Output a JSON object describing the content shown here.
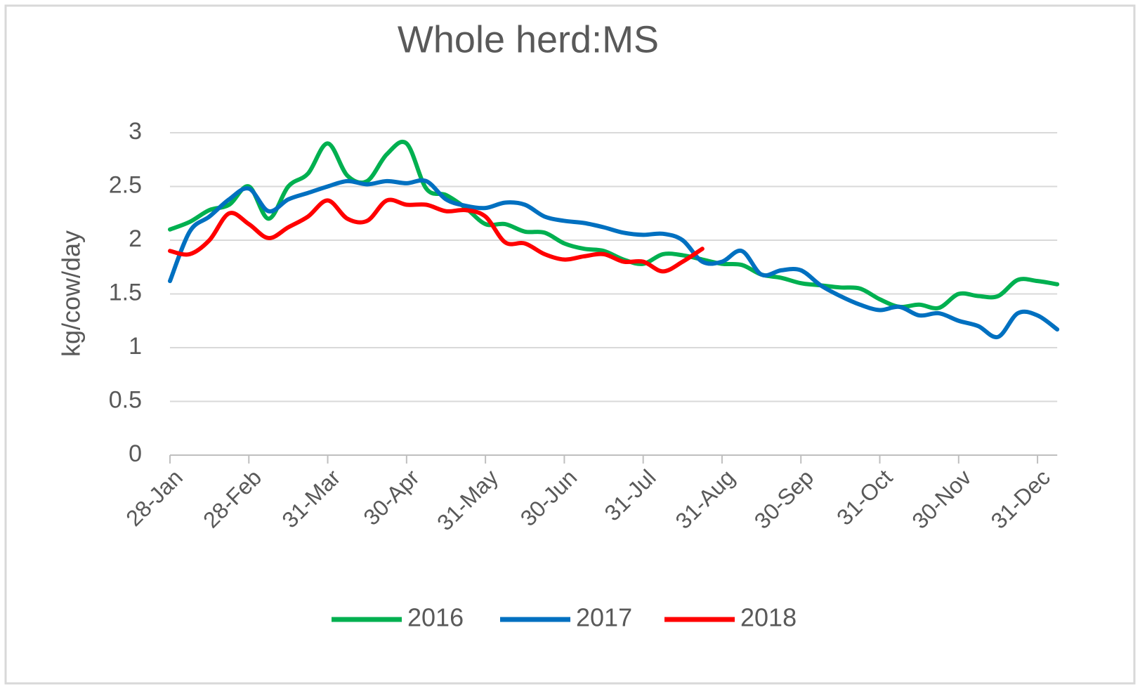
{
  "chart_data": {
    "type": "line",
    "title": "Whole herd:MS",
    "y_label": "kg/cow/day",
    "categories": [
      "28-Jan",
      null,
      null,
      null,
      "28-Feb",
      null,
      null,
      null,
      "31-Mar",
      null,
      null,
      null,
      "30-Apr",
      null,
      null,
      null,
      "31-May",
      null,
      null,
      null,
      "30-Jun",
      null,
      null,
      null,
      "31-Jul",
      null,
      null,
      null,
      "31-Aug",
      null,
      null,
      null,
      "30-Sep",
      null,
      null,
      null,
      "31-Oct",
      null,
      null,
      null,
      "30-Nov",
      null,
      null,
      null,
      "31-Dec",
      null
    ],
    "series": [
      {
        "name": "2016",
        "color": "#00b050",
        "values": [
          2.1,
          2.17,
          2.28,
          2.33,
          2.5,
          2.2,
          2.5,
          2.62,
          2.9,
          2.6,
          2.55,
          2.8,
          2.9,
          2.48,
          2.42,
          2.3,
          2.15,
          2.15,
          2.08,
          2.07,
          1.97,
          1.92,
          1.9,
          1.82,
          1.78,
          1.87,
          1.86,
          1.82,
          1.78,
          1.77,
          1.68,
          1.65,
          1.6,
          1.58,
          1.56,
          1.55,
          1.45,
          1.38,
          1.4,
          1.37,
          1.5,
          1.48,
          1.48,
          1.63,
          1.62,
          1.59
        ]
      },
      {
        "name": "2017",
        "color": "#0070c0",
        "values": [
          1.62,
          2.08,
          2.22,
          2.38,
          2.48,
          2.27,
          2.38,
          2.44,
          2.5,
          2.55,
          2.52,
          2.55,
          2.53,
          2.55,
          2.38,
          2.32,
          2.3,
          2.35,
          2.33,
          2.22,
          2.18,
          2.16,
          2.12,
          2.07,
          2.05,
          2.06,
          2.0,
          1.8,
          1.8,
          1.9,
          1.68,
          1.72,
          1.72,
          1.58,
          1.48,
          1.4,
          1.35,
          1.38,
          1.3,
          1.32,
          1.25,
          1.2,
          1.1,
          1.32,
          1.3,
          1.17
        ]
      },
      {
        "name": "2018",
        "color": "#ff0000",
        "values": [
          1.9,
          1.87,
          2.0,
          2.25,
          2.15,
          2.02,
          2.12,
          2.22,
          2.37,
          2.2,
          2.18,
          2.37,
          2.33,
          2.33,
          2.27,
          2.28,
          2.22,
          1.98,
          1.97,
          1.87,
          1.82,
          1.85,
          1.87,
          1.8,
          1.8,
          1.71,
          1.8,
          1.92,
          null,
          null,
          null,
          null,
          null,
          null,
          null,
          null,
          null,
          null,
          null,
          null,
          null,
          null,
          null,
          null,
          null,
          null
        ]
      }
    ],
    "ylim": [
      0,
      3
    ],
    "yticks": [
      0,
      0.5,
      1,
      1.5,
      2,
      2.5,
      3
    ],
    "grid": true,
    "legend": "bottom"
  }
}
